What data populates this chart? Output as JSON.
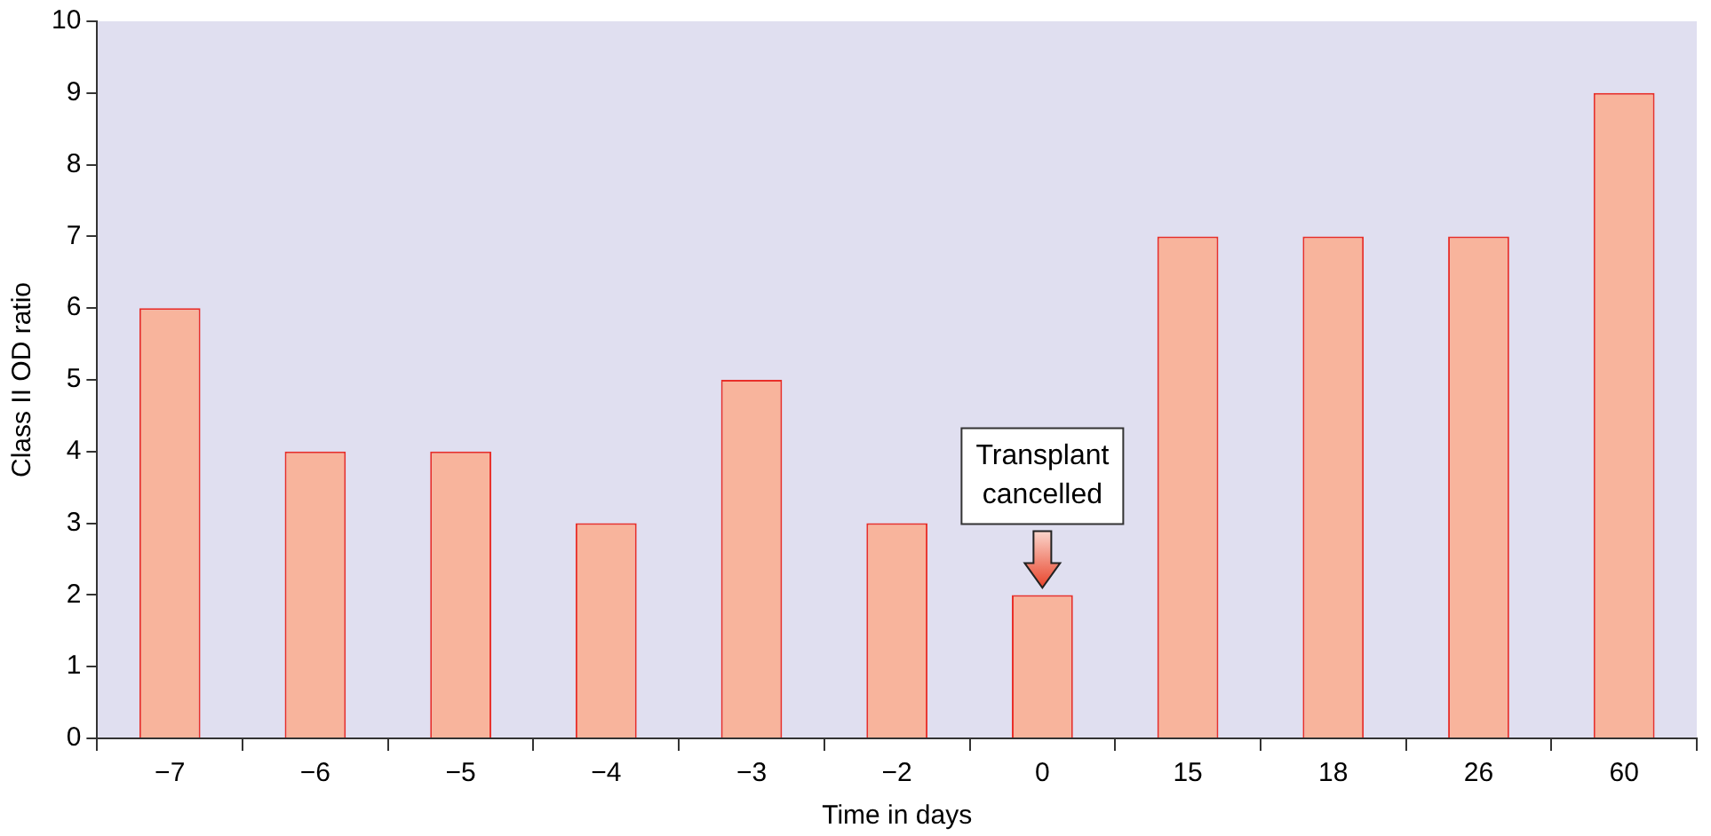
{
  "chart_data": {
    "type": "bar",
    "xlabel": "Time in days",
    "ylabel": "Class II OD ratio",
    "categories": [
      "−7",
      "−6",
      "−5",
      "−4",
      "−3",
      "−2",
      "0",
      "15",
      "18",
      "26",
      "60"
    ],
    "values": [
      6,
      4,
      4,
      3,
      5,
      3,
      2,
      7,
      7,
      7,
      9
    ],
    "color": "#f8b49c",
    "ylim": [
      0,
      10
    ],
    "yticks": [
      0,
      1,
      2,
      3,
      4,
      5,
      6,
      7,
      8,
      9,
      10
    ],
    "grid": false,
    "legend": false,
    "annotations": [
      {
        "text": "Transplant\ncancelled",
        "x": "0",
        "y": 2
      }
    ]
  }
}
